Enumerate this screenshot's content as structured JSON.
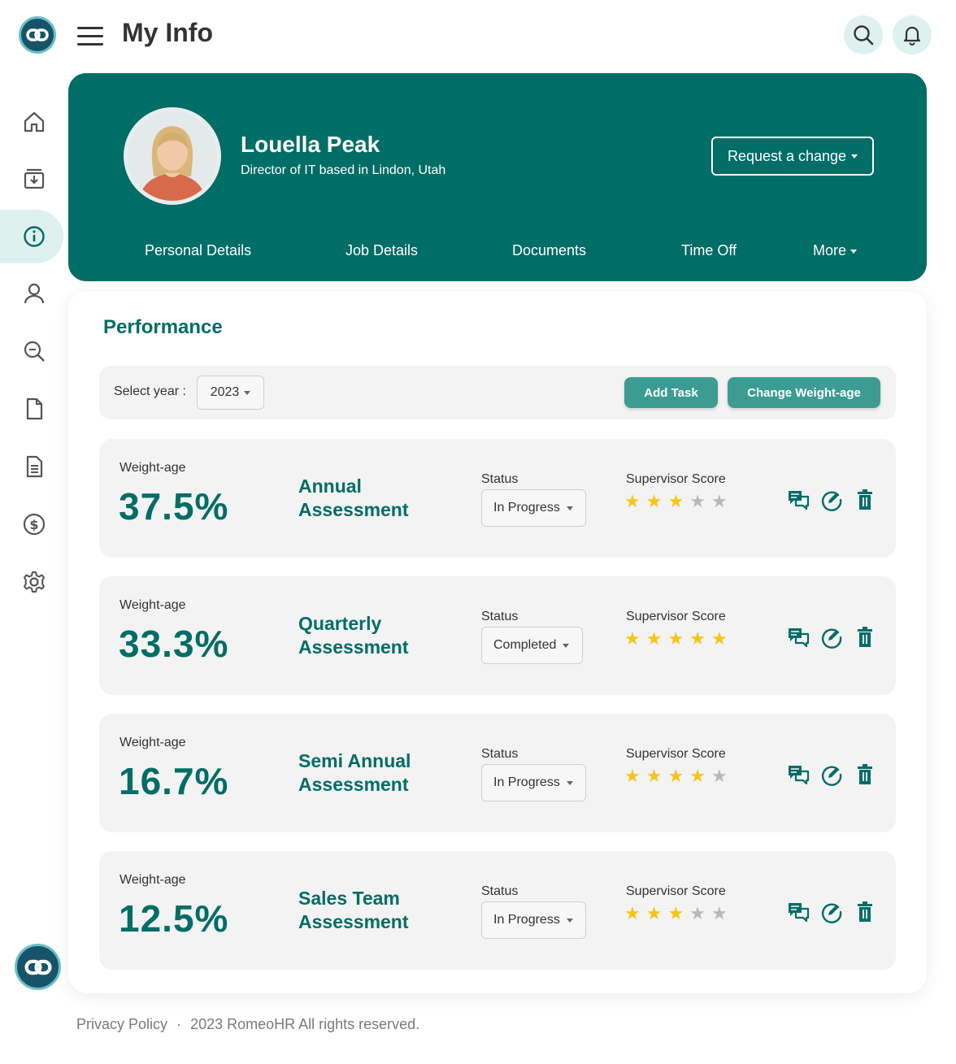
{
  "header": {
    "title": "My Info"
  },
  "profile": {
    "name": "Louella Peak",
    "subtitle": "Director of IT based in Lindon, Utah",
    "request_label": "Request a change"
  },
  "tabs": [
    {
      "label": "Personal Details"
    },
    {
      "label": "Job Details"
    },
    {
      "label": "Documents"
    },
    {
      "label": "Time Off"
    },
    {
      "label": "More"
    }
  ],
  "performance": {
    "title": "Performance",
    "year_label": "Select year :",
    "year_value": "2023",
    "add_task_label": "Add Task",
    "change_weight_label": "Change Weight-age"
  },
  "cards": [
    {
      "weight_label": "Weight-age",
      "weight": "37.5%",
      "name_line1": "Annual",
      "name_line2": "Assessment",
      "status_label": "Status",
      "status": "In Progress",
      "score_label": "Supervisor Score",
      "score": 3,
      "max_score": 5
    },
    {
      "weight_label": "Weight-age",
      "weight": "33.3%",
      "name_line1": "Quarterly",
      "name_line2": "Assessment",
      "status_label": "Status",
      "status": "Completed",
      "score_label": "Supervisor Score",
      "score": 5,
      "max_score": 5
    },
    {
      "weight_label": "Weight-age",
      "weight": "16.7%",
      "name_line1": "Semi Annual",
      "name_line2": "Assessment",
      "status_label": "Status",
      "status": "In Progress",
      "score_label": "Supervisor Score",
      "score": 4,
      "max_score": 5
    },
    {
      "weight_label": "Weight-age",
      "weight": "12.5%",
      "name_line1": "Sales Team",
      "name_line2": "Assessment",
      "status_label": "Status",
      "status": "In Progress",
      "score_label": "Supervisor Score",
      "score": 3,
      "max_score": 5
    }
  ],
  "footer": {
    "privacy": "Privacy Policy",
    "separator": "·",
    "copyright": "2023 RomeoHR All rights reserved."
  },
  "colors": {
    "brand": "#006d66",
    "accent": "#3c9c92",
    "star_on": "#f5c518",
    "star_off": "#b8b8b8"
  },
  "icons": [
    "link-logo-icon",
    "menu-icon",
    "search-icon",
    "bell-icon",
    "home-icon",
    "inbox-icon",
    "info-icon",
    "user-icon",
    "search-doc-icon",
    "file-icon",
    "document-icon",
    "dollar-icon",
    "gear-icon",
    "comments-icon",
    "edit-icon",
    "trash-icon",
    "star-icon"
  ]
}
